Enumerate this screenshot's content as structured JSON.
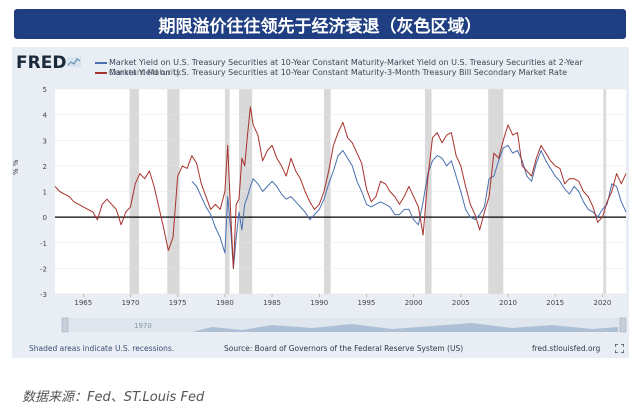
{
  "banner": {
    "title": "期限溢价往往领先于经济衰退（灰色区域）"
  },
  "fred": {
    "logo": "FRED"
  },
  "legend": {
    "line1": "Market Yield on U.S. Treasury Securities at 10-Year Constant Maturity-Market Yield on U.S. Treasury Securities at 2-Year",
    "line2_overlap_a": "Constant Maturity",
    "line2": "Market Yield on U.S. Treasury Securities at 10-Year Constant Maturity-3-Month Treasury Bill Secondary Market Rate"
  },
  "footer": {
    "recession_note": "Shaded areas indicate U.S. recessions.",
    "source": "Source: Board of Governors of the Federal Reserve System (US)",
    "site": "fred.stlouisfed.org",
    "navigator_label": "1970"
  },
  "caption": {
    "text": "数据来源：Fed、ST.Louis Fed"
  },
  "colors": {
    "series_10y2y": "#4a6fb0",
    "series_10y3m": "#a8322d",
    "recession": "#d9d9d9",
    "banner": "#1f3f82"
  },
  "chart_data": {
    "type": "line",
    "ylabel": "% %",
    "ylim": [
      -3,
      5
    ],
    "xlim": [
      1962,
      2022.5
    ],
    "yticks": [
      -3,
      -2,
      -1,
      0,
      1,
      2,
      3,
      4,
      5
    ],
    "xticks": [
      1965,
      1970,
      1975,
      1980,
      1985,
      1990,
      1995,
      2000,
      2005,
      2010,
      2015,
      2020
    ],
    "recessions": [
      [
        1969.9,
        1970.9
      ],
      [
        1973.9,
        1975.2
      ],
      [
        1980.0,
        1980.5
      ],
      [
        1981.5,
        1982.9
      ],
      [
        1990.5,
        1991.2
      ],
      [
        2001.2,
        2001.9
      ],
      [
        2007.9,
        2009.5
      ],
      [
        2020.1,
        2020.4
      ]
    ],
    "series": [
      {
        "name": "10Y-2Y",
        "x": [
          1976.5,
          1977.0,
          1977.5,
          1978.0,
          1978.5,
          1979.0,
          1979.5,
          1980.0,
          1980.3,
          1980.6,
          1980.9,
          1981.2,
          1981.5,
          1981.8,
          1982.1,
          1982.4,
          1982.7,
          1983.0,
          1983.5,
          1984.0,
          1984.5,
          1985.0,
          1985.5,
          1986.0,
          1986.5,
          1987.0,
          1987.5,
          1988.0,
          1988.5,
          1989.0,
          1989.5,
          1990.0,
          1990.5,
          1991.0,
          1991.5,
          1992.0,
          1992.5,
          1993.0,
          1993.5,
          1994.0,
          1994.5,
          1995.0,
          1995.5,
          1996.0,
          1996.5,
          1997.0,
          1997.5,
          1998.0,
          1998.5,
          1999.0,
          1999.5,
          2000.0,
          2000.5,
          2001.0,
          2001.5,
          2002.0,
          2002.5,
          2003.0,
          2003.5,
          2004.0,
          2004.5,
          2005.0,
          2005.5,
          2006.0,
          2006.5,
          2007.0,
          2007.5,
          2008.0,
          2008.5,
          2009.0,
          2009.5,
          2010.0,
          2010.5,
          2011.0,
          2011.5,
          2012.0,
          2012.5,
          2013.0,
          2013.5,
          2014.0,
          2014.5,
          2015.0,
          2015.5,
          2016.0,
          2016.5,
          2017.0,
          2017.5,
          2018.0,
          2018.5,
          2019.0,
          2019.5,
          2020.0,
          2020.5,
          2021.0,
          2021.5,
          2022.0,
          2022.5
        ],
        "values": [
          1.4,
          1.2,
          0.8,
          0.4,
          0.1,
          -0.4,
          -0.8,
          -1.4,
          0.8,
          -0.4,
          -2.0,
          -0.8,
          0.2,
          -0.5,
          0.5,
          0.8,
          1.2,
          1.5,
          1.3,
          1.0,
          1.2,
          1.4,
          1.2,
          0.9,
          0.7,
          0.8,
          0.6,
          0.4,
          0.2,
          -0.1,
          0.1,
          0.3,
          0.7,
          1.3,
          1.8,
          2.4,
          2.6,
          2.3,
          2.0,
          1.4,
          1.0,
          0.5,
          0.4,
          0.5,
          0.6,
          0.5,
          0.4,
          0.1,
          0.1,
          0.3,
          0.3,
          -0.1,
          -0.3,
          0.6,
          1.7,
          2.2,
          2.4,
          2.3,
          2.0,
          2.2,
          1.6,
          1.0,
          0.3,
          0.0,
          -0.1,
          0.1,
          0.4,
          1.5,
          1.6,
          2.2,
          2.7,
          2.8,
          2.5,
          2.6,
          2.2,
          1.6,
          1.4,
          2.1,
          2.6,
          2.2,
          1.9,
          1.6,
          1.4,
          1.1,
          0.9,
          1.2,
          1.0,
          0.6,
          0.3,
          0.2,
          0.0,
          0.3,
          0.5,
          1.3,
          1.2,
          0.6,
          0.2
        ]
      },
      {
        "name": "10Y-3M",
        "x": [
          1962.0,
          1962.5,
          1963.0,
          1963.5,
          1964.0,
          1964.5,
          1965.0,
          1965.5,
          1966.0,
          1966.5,
          1967.0,
          1967.5,
          1968.0,
          1968.5,
          1969.0,
          1969.5,
          1970.0,
          1970.5,
          1971.0,
          1971.5,
          1972.0,
          1972.5,
          1973.0,
          1973.5,
          1974.0,
          1974.5,
          1975.0,
          1975.5,
          1976.0,
          1976.5,
          1977.0,
          1977.5,
          1978.0,
          1978.5,
          1979.0,
          1979.5,
          1980.0,
          1980.3,
          1980.6,
          1980.9,
          1981.2,
          1981.5,
          1981.8,
          1982.1,
          1982.4,
          1982.7,
          1983.0,
          1983.5,
          1984.0,
          1984.5,
          1985.0,
          1985.5,
          1986.0,
          1986.5,
          1987.0,
          1987.5,
          1988.0,
          1988.5,
          1989.0,
          1989.5,
          1990.0,
          1990.5,
          1991.0,
          1991.5,
          1992.0,
          1992.5,
          1993.0,
          1993.5,
          1994.0,
          1994.5,
          1995.0,
          1995.5,
          1996.0,
          1996.5,
          1997.0,
          1997.5,
          1998.0,
          1998.5,
          1999.0,
          1999.5,
          2000.0,
          2000.5,
          2001.0,
          2001.5,
          2002.0,
          2002.5,
          2003.0,
          2003.5,
          2004.0,
          2004.5,
          2005.0,
          2005.5,
          2006.0,
          2006.5,
          2007.0,
          2007.5,
          2008.0,
          2008.5,
          2009.0,
          2009.5,
          2010.0,
          2010.5,
          2011.0,
          2011.5,
          2012.0,
          2012.5,
          2013.0,
          2013.5,
          2014.0,
          2014.5,
          2015.0,
          2015.5,
          2016.0,
          2016.5,
          2017.0,
          2017.5,
          2018.0,
          2018.5,
          2019.0,
          2019.5,
          2020.0,
          2020.5,
          2021.0,
          2021.5,
          2022.0,
          2022.5
        ],
        "values": [
          1.2,
          1.0,
          0.9,
          0.8,
          0.6,
          0.5,
          0.4,
          0.3,
          0.2,
          -0.1,
          0.5,
          0.7,
          0.5,
          0.3,
          -0.3,
          0.2,
          0.4,
          1.3,
          1.7,
          1.5,
          1.8,
          1.2,
          0.4,
          -0.4,
          -1.3,
          -0.8,
          1.6,
          2.0,
          1.9,
          2.4,
          2.1,
          1.3,
          0.8,
          0.3,
          0.5,
          0.3,
          1.0,
          2.8,
          0.3,
          -2.0,
          0.5,
          0.7,
          2.3,
          2.0,
          3.2,
          4.3,
          3.6,
          3.2,
          2.2,
          2.6,
          2.8,
          2.3,
          2.0,
          1.6,
          2.3,
          1.8,
          1.5,
          1.0,
          0.6,
          0.3,
          0.5,
          1.0,
          1.8,
          2.8,
          3.3,
          3.7,
          3.1,
          2.9,
          2.5,
          2.1,
          1.1,
          0.6,
          0.8,
          1.4,
          1.3,
          1.0,
          0.8,
          0.5,
          0.8,
          1.2,
          0.8,
          0.4,
          -0.7,
          1.5,
          3.1,
          3.3,
          2.9,
          3.2,
          3.3,
          2.4,
          2.0,
          1.2,
          0.5,
          0.1,
          -0.5,
          0.2,
          0.8,
          2.5,
          2.3,
          3.0,
          3.6,
          3.2,
          3.3,
          2.0,
          1.8,
          1.6,
          2.3,
          2.8,
          2.5,
          2.2,
          2.0,
          1.9,
          1.3,
          1.5,
          1.5,
          1.4,
          1.0,
          0.8,
          0.4,
          -0.2,
          0.0,
          0.6,
          1.0,
          1.7,
          1.3,
          1.7
        ]
      }
    ]
  }
}
